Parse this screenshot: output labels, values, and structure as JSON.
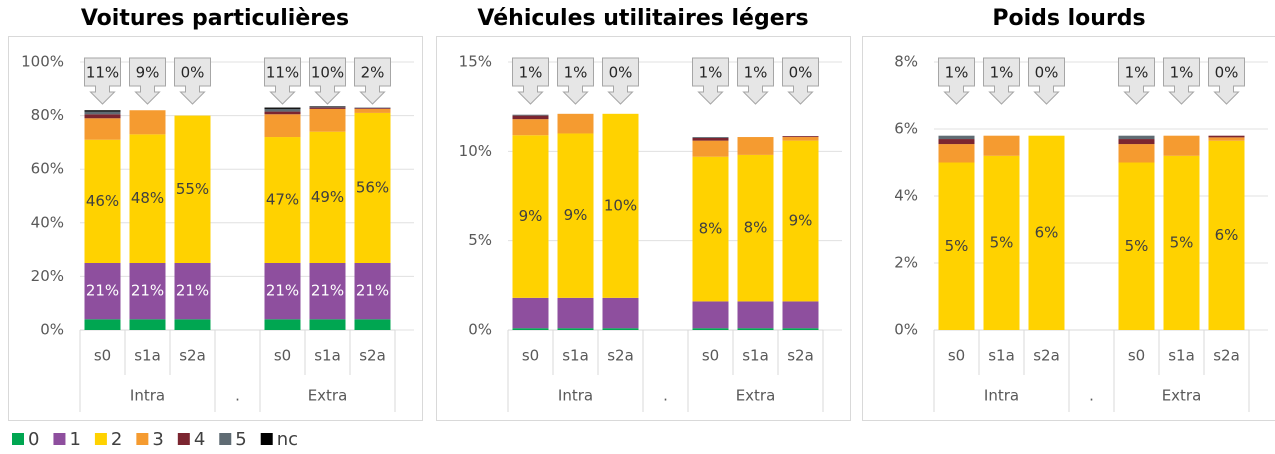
{
  "legend": [
    {
      "name": "0",
      "color": "#00a651"
    },
    {
      "name": "1",
      "color": "#8e4f9e"
    },
    {
      "name": "2",
      "color": "#ffd200"
    },
    {
      "name": "3",
      "color": "#f59b30"
    },
    {
      "name": "4",
      "color": "#7b2530"
    },
    {
      "name": "5",
      "color": "#5f6b73"
    },
    {
      "name": "nc",
      "color": "#000000"
    }
  ],
  "chart_data": [
    {
      "type": "bar",
      "stacked": true,
      "title": "Voitures particulières",
      "categories": [
        "s0",
        "s1a",
        "s2a",
        null,
        "s0",
        "s1a",
        "s2a"
      ],
      "groups": [
        "Intra",
        ".",
        "Extra"
      ],
      "ylim": [
        0,
        100
      ],
      "yticks": [
        {
          "value": 0,
          "label": "0%"
        },
        {
          "value": 20,
          "label": "20%"
        },
        {
          "value": 40,
          "label": "40%"
        },
        {
          "value": 60,
          "label": "60%"
        },
        {
          "value": 80,
          "label": "80%"
        },
        {
          "value": 100,
          "label": "100%"
        }
      ],
      "callouts": [
        "11%",
        "9%",
        "0%",
        null,
        "11%",
        "10%",
        "2%"
      ],
      "series": [
        {
          "values": [
            4,
            4,
            4,
            null,
            4,
            4,
            4
          ]
        },
        {
          "values": [
            21,
            21,
            21,
            null,
            21,
            21,
            21
          ],
          "value_labels": [
            "21%",
            "21%",
            "21%",
            null,
            "21%",
            "21%",
            "21%"
          ]
        },
        {
          "values": [
            46,
            48,
            55,
            null,
            47,
            49,
            56
          ],
          "value_labels": [
            "46%",
            "48%",
            "55%",
            null,
            "47%",
            "49%",
            "56%"
          ]
        },
        {
          "values": [
            8,
            9,
            0,
            null,
            8.5,
            8.5,
            1.5
          ]
        },
        {
          "values": [
            1.5,
            0,
            0,
            null,
            1,
            0.5,
            0.3
          ]
        },
        {
          "values": [
            1,
            0,
            0,
            null,
            1,
            0.3,
            0.2
          ]
        },
        {
          "values": [
            0.5,
            0,
            0,
            null,
            0.5,
            0.2,
            0
          ]
        }
      ]
    },
    {
      "type": "bar",
      "stacked": true,
      "title": "Véhicules utilitaires légers",
      "categories": [
        "s0",
        "s1a",
        "s2a",
        null,
        "s0",
        "s1a",
        "s2a"
      ],
      "groups": [
        "Intra",
        ".",
        "Extra"
      ],
      "ylim": [
        0,
        15
      ],
      "yticks": [
        {
          "value": 0,
          "label": "0%"
        },
        {
          "value": 5,
          "label": "5%"
        },
        {
          "value": 10,
          "label": "10%"
        },
        {
          "value": 15,
          "label": "15%"
        }
      ],
      "callouts": [
        "1%",
        "1%",
        "0%",
        null,
        "1%",
        "1%",
        "0%"
      ],
      "series": [
        {
          "values": [
            0.1,
            0.1,
            0.1,
            null,
            0.1,
            0.1,
            0.1
          ]
        },
        {
          "values": [
            1.7,
            1.7,
            1.7,
            null,
            1.5,
            1.5,
            1.5
          ]
        },
        {
          "values": [
            9.1,
            9.2,
            10.3,
            null,
            8.1,
            8.2,
            9.0
          ],
          "value_labels": [
            "9%",
            "9%",
            "10%",
            null,
            "8%",
            "8%",
            "9%"
          ]
        },
        {
          "values": [
            0.9,
            1.1,
            0,
            null,
            0.9,
            1.0,
            0.2
          ]
        },
        {
          "values": [
            0.2,
            0,
            0,
            null,
            0.15,
            0,
            0.05
          ]
        },
        {
          "values": [
            0.05,
            0,
            0,
            null,
            0.05,
            0,
            0
          ]
        },
        {
          "values": [
            0,
            0,
            0,
            null,
            0,
            0,
            0
          ]
        }
      ]
    },
    {
      "type": "bar",
      "stacked": true,
      "title": "Poids lourds",
      "categories": [
        "s0",
        "s1a",
        "s2a",
        null,
        "s0",
        "s1a",
        "s2a"
      ],
      "groups": [
        "Intra",
        ".",
        "Extra"
      ],
      "ylim": [
        0,
        8
      ],
      "yticks": [
        {
          "value": 0,
          "label": "0%"
        },
        {
          "value": 2,
          "label": "2%"
        },
        {
          "value": 4,
          "label": "4%"
        },
        {
          "value": 6,
          "label": "6%"
        },
        {
          "value": 8,
          "label": "8%"
        }
      ],
      "callouts": [
        "1%",
        "1%",
        "0%",
        null,
        "1%",
        "1%",
        "0%"
      ],
      "series": [
        {
          "values": [
            0,
            0,
            0,
            null,
            0,
            0,
            0
          ]
        },
        {
          "values": [
            0,
            0,
            0,
            null,
            0,
            0,
            0
          ]
        },
        {
          "values": [
            5.0,
            5.2,
            5.8,
            null,
            5.0,
            5.2,
            5.65
          ],
          "value_labels": [
            "5%",
            "5%",
            "6%",
            null,
            "5%",
            "5%",
            "6%"
          ]
        },
        {
          "values": [
            0.55,
            0.6,
            0,
            null,
            0.55,
            0.6,
            0.1
          ]
        },
        {
          "values": [
            0.15,
            0,
            0,
            null,
            0.15,
            0,
            0.05
          ]
        },
        {
          "values": [
            0.1,
            0,
            0,
            null,
            0.1,
            0,
            0
          ]
        },
        {
          "values": [
            0,
            0,
            0,
            null,
            0,
            0,
            0
          ]
        }
      ]
    }
  ]
}
